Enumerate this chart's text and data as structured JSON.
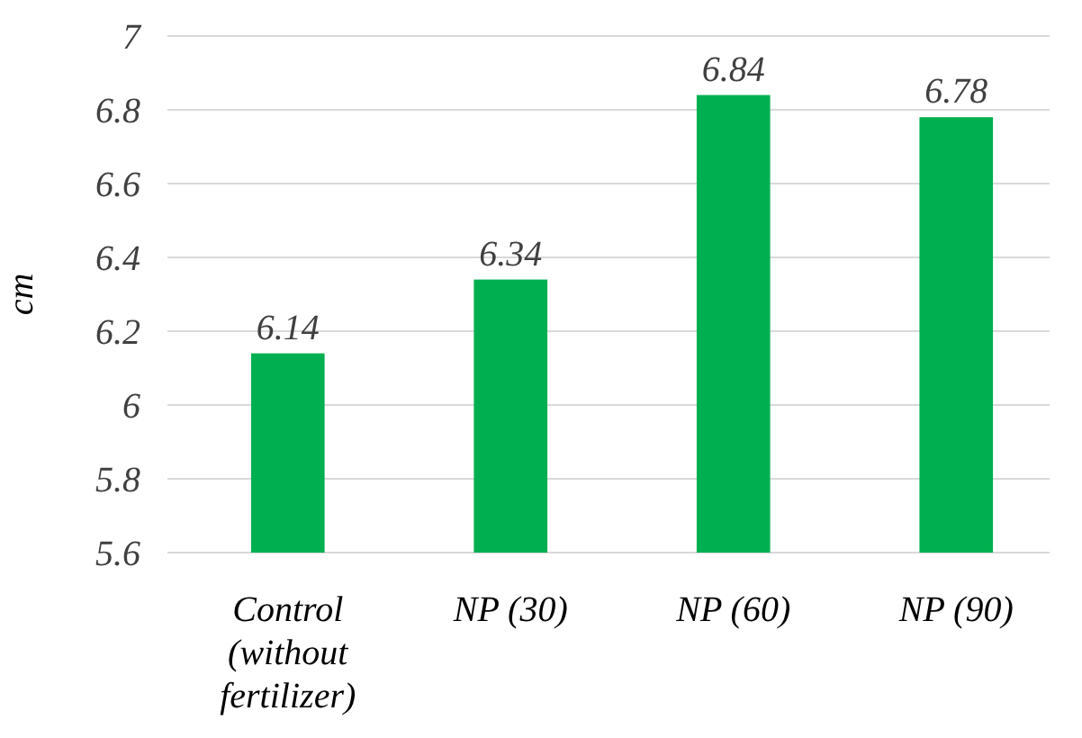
{
  "chart_data": {
    "type": "bar",
    "ylabel": "cm",
    "categories": [
      "Control (without fertilizer)",
      "NP (30)",
      "NP (60)",
      "NP (90)"
    ],
    "values": [
      6.14,
      6.34,
      6.84,
      6.78
    ],
    "color": "#00b050",
    "ylim": [
      5.6,
      7
    ],
    "yticks": [
      5.6,
      5.8,
      6,
      6.2,
      6.4,
      6.6,
      6.8,
      7
    ],
    "grid": "y",
    "data_labels": true
  }
}
